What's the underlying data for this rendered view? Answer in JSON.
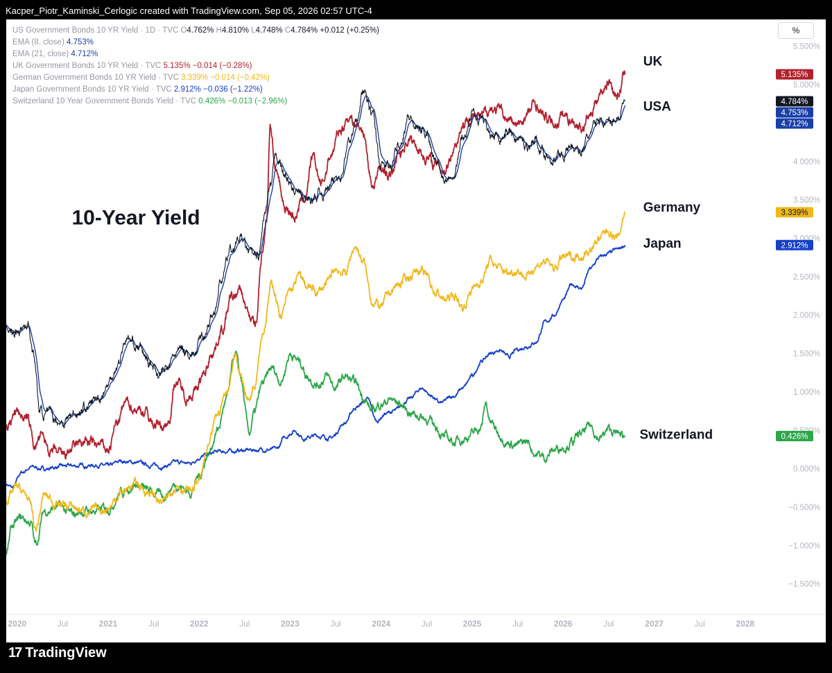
{
  "header": {
    "attribution": "Kacper_Piotr_Kaminski_Cerlogic created with TradingView.com, Sep 05, 2026 02:57 UTC-4"
  },
  "footer": {
    "logo_text": "TradingView",
    "logo_mark": "17"
  },
  "toolbar": {
    "scale_button": "%"
  },
  "legend": {
    "us": {
      "label": "US Government Bonds 10 YR Yield · 1D · TVC",
      "o_label": "O",
      "o": "4.762%",
      "h_label": "H",
      "h": "4.810%",
      "l_label": "L",
      "l": "4.748%",
      "c_label": "C",
      "c": "4.784%",
      "change": "+0.012 (+0.25%)"
    },
    "ema8": {
      "label": "EMA (8, close)",
      "value": "4.753%"
    },
    "ema21": {
      "label": "EMA (21, close)",
      "value": "4.712%"
    },
    "uk": {
      "label": "UK Government Bonds 10 YR Yield · TVC",
      "value": "5.135%",
      "change": "−0.014 (−0.28%)"
    },
    "de": {
      "label": "German Government Bonds 10 YR Yield · TVC",
      "value": "3.339%",
      "change": "−0.014 (−0.42%)"
    },
    "jp": {
      "label": "Japan Government Bonds 10 YR Yield · TVC",
      "value": "2.912%",
      "change": "−0.036 (−1.22%)"
    },
    "ch": {
      "label": "Switzerland 10 Year Government Bonds Yield · TVC",
      "value": "0.426%",
      "change": "−0.013 (−2.96%)"
    }
  },
  "colors": {
    "us": "#131722",
    "ema": "#1a3fa8",
    "uk": "#b0222e",
    "de": "#f0b81c",
    "jp": "#1640c8",
    "ch": "#2ea64a",
    "axis_text": "#b2b5be",
    "label_text": "#131722"
  },
  "chart_data": {
    "type": "line",
    "title": "10-Year Yield",
    "y_unit": "%",
    "ylim": [
      -1.9,
      5.85
    ],
    "y_ticks": [
      "5.500%",
      "5.000%",
      "4.000%",
      "3.500%",
      "3.000%",
      "2.500%",
      "2.000%",
      "1.500%",
      "1.000%",
      "0.500%",
      "0.000%",
      "−0.500%",
      "−1.000%",
      "−1.500%"
    ],
    "y_tick_values": [
      5.5,
      5.0,
      4.0,
      3.5,
      3.0,
      2.5,
      2.0,
      1.5,
      1.0,
      0.5,
      0.0,
      -0.5,
      -1.0,
      -1.5
    ],
    "xlim": [
      2019.88,
      2028.2
    ],
    "x_ticks": [
      {
        "label": "2020",
        "x": 2020.0
      },
      {
        "label": "Jul",
        "x": 2020.5
      },
      {
        "label": "2021",
        "x": 2021.0
      },
      {
        "label": "Jul",
        "x": 2021.5
      },
      {
        "label": "2022",
        "x": 2022.0
      },
      {
        "label": "Jul",
        "x": 2022.5
      },
      {
        "label": "2023",
        "x": 2023.0
      },
      {
        "label": "Jul",
        "x": 2023.5
      },
      {
        "label": "2024",
        "x": 2024.0
      },
      {
        "label": "Jul",
        "x": 2024.5
      },
      {
        "label": "2025",
        "x": 2025.0
      },
      {
        "label": "Jul",
        "x": 2025.5
      },
      {
        "label": "2026",
        "x": 2026.0
      },
      {
        "label": "Jul",
        "x": 2026.5
      },
      {
        "label": "2027",
        "x": 2027.0
      },
      {
        "label": "Jul",
        "x": 2027.5
      },
      {
        "label": "2028",
        "x": 2028.0
      }
    ],
    "series": [
      {
        "key": "uk",
        "name": "UK",
        "last": "5.135%",
        "x": [
          2019.88,
          2020.0,
          2020.1,
          2020.2,
          2020.25,
          2020.4,
          2020.5,
          2020.6,
          2020.75,
          2020.9,
          2021.0,
          2021.1,
          2021.2,
          2021.3,
          2021.4,
          2021.5,
          2021.6,
          2021.65,
          2021.75,
          2021.85,
          2021.95,
          2022.05,
          2022.15,
          2022.25,
          2022.35,
          2022.45,
          2022.55,
          2022.62,
          2022.7,
          2022.74,
          2022.78,
          2022.85,
          2022.95,
          2023.05,
          2023.15,
          2023.25,
          2023.35,
          2023.45,
          2023.55,
          2023.65,
          2023.72,
          2023.8,
          2023.9,
          2024.0,
          2024.1,
          2024.2,
          2024.3,
          2024.4,
          2024.5,
          2024.6,
          2024.7,
          2024.8,
          2024.9,
          2025.0,
          2025.1,
          2025.2,
          2025.3,
          2025.4,
          2025.5,
          2025.6,
          2025.7,
          2025.8,
          2025.9,
          2026.0,
          2026.1,
          2026.2,
          2026.3,
          2026.4,
          2026.5,
          2026.6,
          2026.68
        ],
        "y": [
          0.55,
          0.75,
          0.65,
          0.3,
          0.4,
          0.2,
          0.15,
          0.25,
          0.35,
          0.3,
          0.25,
          0.6,
          0.85,
          0.8,
          0.75,
          0.6,
          0.55,
          0.6,
          1.15,
          0.95,
          1.0,
          1.2,
          1.55,
          1.8,
          2.2,
          2.3,
          2.0,
          1.85,
          2.9,
          3.25,
          4.5,
          3.8,
          3.4,
          3.3,
          3.5,
          4.0,
          3.7,
          4.1,
          4.4,
          4.6,
          4.5,
          4.4,
          3.7,
          3.9,
          3.8,
          4.1,
          4.3,
          4.2,
          4.05,
          3.95,
          3.9,
          4.2,
          4.5,
          4.6,
          4.55,
          4.7,
          4.65,
          4.55,
          4.45,
          4.6,
          4.75,
          4.55,
          4.5,
          4.6,
          4.55,
          4.45,
          4.6,
          4.9,
          5.05,
          4.85,
          5.135
        ]
      },
      {
        "key": "us",
        "name": "USA",
        "last": "4.784%",
        "x": [
          2019.88,
          2019.95,
          2020.05,
          2020.12,
          2020.18,
          2020.25,
          2020.4,
          2020.5,
          2020.6,
          2020.75,
          2020.9,
          2021.0,
          2021.1,
          2021.2,
          2021.3,
          2021.45,
          2021.55,
          2021.65,
          2021.75,
          2021.85,
          2021.95,
          2022.05,
          2022.15,
          2022.25,
          2022.35,
          2022.45,
          2022.55,
          2022.65,
          2022.72,
          2022.78,
          2022.85,
          2022.95,
          2023.05,
          2023.15,
          2023.25,
          2023.35,
          2023.45,
          2023.55,
          2023.65,
          2023.72,
          2023.8,
          2023.9,
          2024.0,
          2024.1,
          2024.2,
          2024.3,
          2024.4,
          2024.5,
          2024.6,
          2024.7,
          2024.8,
          2024.9,
          2025.0,
          2025.1,
          2025.2,
          2025.3,
          2025.4,
          2025.5,
          2025.6,
          2025.7,
          2025.8,
          2025.9,
          2026.0,
          2026.1,
          2026.2,
          2026.3,
          2026.4,
          2026.5,
          2026.6,
          2026.68
        ],
        "y": [
          1.9,
          1.75,
          1.85,
          1.9,
          1.5,
          0.75,
          0.65,
          0.62,
          0.7,
          0.8,
          0.92,
          1.1,
          1.35,
          1.7,
          1.62,
          1.4,
          1.25,
          1.3,
          1.5,
          1.55,
          1.5,
          1.75,
          2.0,
          2.5,
          2.85,
          3.0,
          2.8,
          2.7,
          3.3,
          3.6,
          4.1,
          3.8,
          3.6,
          3.5,
          3.5,
          3.6,
          3.7,
          3.85,
          4.25,
          4.5,
          4.95,
          4.6,
          3.95,
          3.9,
          4.25,
          4.6,
          4.4,
          4.4,
          4.0,
          3.8,
          3.9,
          4.3,
          4.6,
          4.6,
          4.3,
          4.35,
          4.4,
          4.3,
          4.2,
          4.3,
          4.1,
          4.05,
          4.1,
          4.2,
          4.15,
          4.35,
          4.55,
          4.5,
          4.6,
          4.784
        ]
      },
      {
        "key": "de",
        "name": "Germany",
        "last": "3.339%",
        "x": [
          2019.88,
          2020.0,
          2020.1,
          2020.15,
          2020.2,
          2020.3,
          2020.45,
          2020.6,
          2020.75,
          2020.9,
          2021.0,
          2021.15,
          2021.3,
          2021.45,
          2021.6,
          2021.75,
          2021.9,
          2022.0,
          2022.1,
          2022.2,
          2022.3,
          2022.4,
          2022.45,
          2022.55,
          2022.6,
          2022.7,
          2022.8,
          2022.9,
          2023.0,
          2023.1,
          2023.2,
          2023.3,
          2023.4,
          2023.5,
          2023.6,
          2023.72,
          2023.8,
          2023.9,
          2024.0,
          2024.1,
          2024.2,
          2024.3,
          2024.4,
          2024.5,
          2024.6,
          2024.7,
          2024.8,
          2024.9,
          2025.0,
          2025.1,
          2025.2,
          2025.3,
          2025.4,
          2025.5,
          2025.6,
          2025.7,
          2025.8,
          2025.9,
          2026.0,
          2026.1,
          2026.2,
          2026.3,
          2026.4,
          2026.5,
          2026.6,
          2026.68
        ],
        "y": [
          -0.4,
          -0.25,
          -0.35,
          -0.5,
          -0.8,
          -0.35,
          -0.45,
          -0.5,
          -0.55,
          -0.55,
          -0.5,
          -0.3,
          -0.2,
          -0.3,
          -0.45,
          -0.2,
          -0.3,
          -0.15,
          0.25,
          0.7,
          1.0,
          1.5,
          1.2,
          0.9,
          1.1,
          1.8,
          2.4,
          2.0,
          2.3,
          2.5,
          2.35,
          2.3,
          2.4,
          2.6,
          2.55,
          2.9,
          2.7,
          2.2,
          2.1,
          2.3,
          2.4,
          2.5,
          2.6,
          2.5,
          2.3,
          2.2,
          2.25,
          2.1,
          2.35,
          2.45,
          2.7,
          2.6,
          2.55,
          2.6,
          2.5,
          2.65,
          2.7,
          2.6,
          2.75,
          2.75,
          2.8,
          2.85,
          3.0,
          3.1,
          3.0,
          3.339
        ]
      },
      {
        "key": "jp",
        "name": "Japan",
        "last": "2.912%",
        "x": [
          2019.88,
          2019.95,
          2020.05,
          2020.15,
          2020.3,
          2020.5,
          2020.7,
          2020.9,
          2021.0,
          2021.15,
          2021.3,
          2021.45,
          2021.6,
          2021.75,
          2021.9,
          2022.0,
          2022.1,
          2022.2,
          2022.35,
          2022.5,
          2022.7,
          2022.85,
          2022.95,
          2023.05,
          2023.15,
          2023.3,
          2023.45,
          2023.6,
          2023.72,
          2023.85,
          2023.95,
          2024.05,
          2024.15,
          2024.3,
          2024.45,
          2024.55,
          2024.65,
          2024.8,
          2024.9,
          2025.0,
          2025.1,
          2025.2,
          2025.3,
          2025.4,
          2025.5,
          2025.6,
          2025.7,
          2025.8,
          2025.9,
          2026.0,
          2026.1,
          2026.2,
          2026.3,
          2026.4,
          2026.5,
          2026.6,
          2026.68
        ],
        "y": [
          -0.2,
          -0.25,
          -0.05,
          0.02,
          0.0,
          0.03,
          0.04,
          0.05,
          0.03,
          0.1,
          0.08,
          0.05,
          0.03,
          0.08,
          0.07,
          0.15,
          0.18,
          0.22,
          0.23,
          0.24,
          0.25,
          0.25,
          0.42,
          0.5,
          0.4,
          0.43,
          0.4,
          0.6,
          0.8,
          0.9,
          0.62,
          0.72,
          0.75,
          0.9,
          1.05,
          0.95,
          0.85,
          0.95,
          1.05,
          1.2,
          1.4,
          1.5,
          1.55,
          1.45,
          1.55,
          1.6,
          1.65,
          1.9,
          2.0,
          2.2,
          2.4,
          2.35,
          2.6,
          2.75,
          2.8,
          2.85,
          2.912
        ]
      },
      {
        "key": "ch",
        "name": "Switzerland",
        "last": "0.426%",
        "x": [
          2019.88,
          2019.95,
          2020.05,
          2020.15,
          2020.2,
          2020.3,
          2020.45,
          2020.6,
          2020.75,
          2020.9,
          2021.0,
          2021.15,
          2021.3,
          2021.45,
          2021.6,
          2021.75,
          2021.9,
          2022.0,
          2022.1,
          2022.2,
          2022.3,
          2022.4,
          2022.45,
          2022.55,
          2022.6,
          2022.7,
          2022.8,
          2022.9,
          2023.0,
          2023.1,
          2023.2,
          2023.3,
          2023.4,
          2023.5,
          2023.6,
          2023.72,
          2023.8,
          2023.9,
          2024.0,
          2024.1,
          2024.2,
          2024.3,
          2024.4,
          2024.5,
          2024.6,
          2024.7,
          2024.8,
          2024.9,
          2025.0,
          2025.1,
          2025.15,
          2025.2,
          2025.3,
          2025.4,
          2025.5,
          2025.6,
          2025.7,
          2025.8,
          2025.9,
          2026.0,
          2026.1,
          2026.2,
          2026.3,
          2026.4,
          2026.5,
          2026.6,
          2026.68
        ],
        "y": [
          -1.1,
          -0.75,
          -0.65,
          -0.7,
          -1.0,
          -0.55,
          -0.5,
          -0.6,
          -0.55,
          -0.55,
          -0.5,
          -0.3,
          -0.2,
          -0.3,
          -0.35,
          -0.2,
          -0.3,
          -0.1,
          0.2,
          0.5,
          0.9,
          1.5,
          1.2,
          0.45,
          0.7,
          1.1,
          1.3,
          1.15,
          1.5,
          1.4,
          1.2,
          1.1,
          1.2,
          1.05,
          1.2,
          1.1,
          0.95,
          0.75,
          0.85,
          0.9,
          0.85,
          0.75,
          0.7,
          0.65,
          0.55,
          0.4,
          0.35,
          0.4,
          0.45,
          0.55,
          0.85,
          0.6,
          0.45,
          0.35,
          0.3,
          0.35,
          0.2,
          0.15,
          0.25,
          0.3,
          0.35,
          0.45,
          0.55,
          0.4,
          0.5,
          0.45,
          0.426
        ]
      }
    ],
    "annotations": [
      {
        "text": "10-Year Yield",
        "anchor_x": 2020.6,
        "anchor_y": 3.18
      },
      {
        "text": "UK",
        "anchor_x": 2026.88,
        "anchor_y": 5.25
      },
      {
        "text": "USA",
        "anchor_x": 2026.88,
        "anchor_y": 4.66
      },
      {
        "text": "Germany",
        "anchor_x": 2026.88,
        "anchor_y": 3.35
      },
      {
        "text": "Japan",
        "anchor_x": 2026.88,
        "anchor_y": 2.88
      },
      {
        "text": "Switzerland",
        "anchor_x": 2026.84,
        "anchor_y": 0.39
      }
    ],
    "price_tags": [
      {
        "text": "5.135%",
        "value": 5.135,
        "color": "#b0222e"
      },
      {
        "text": "4.784%",
        "value": 4.784,
        "color": "#131722"
      },
      {
        "text": "4.753%",
        "value": 4.753,
        "color": "#1a3fa8"
      },
      {
        "text": "4.712%",
        "value": 4.712,
        "color": "#1a3fa8"
      },
      {
        "text": "3.339%",
        "value": 3.339,
        "color": "#f0b81c"
      },
      {
        "text": "2.912%",
        "value": 2.912,
        "color": "#1640c8"
      },
      {
        "text": "0.426%",
        "value": 0.426,
        "color": "#2ea64a"
      }
    ]
  }
}
